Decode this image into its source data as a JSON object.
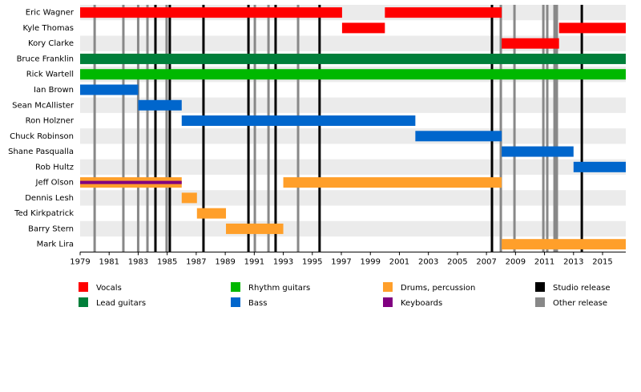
{
  "chart_data": {
    "type": "timeline",
    "categories": [
      "Eric Wagner",
      "Kyle Thomas",
      "Kory Clarke",
      "Bruce Franklin",
      "Rick Wartell",
      "Ian Brown",
      "Sean McAllister",
      "Ron Holzner",
      "Chuck Robinson",
      "Shane Pasqualla",
      "Rob Hultz",
      "Jeff Olson",
      "Dennis Lesh",
      "Ted Kirkpatrick",
      "Barry Stern",
      "Mark Lira"
    ],
    "roles": [
      {
        "name": "Vocals",
        "color": "#ff0000"
      },
      {
        "name": "Lead guitars",
        "color": "#007f3a"
      },
      {
        "name": "Rhythm guitars",
        "color": "#00b800"
      },
      {
        "name": "Bass",
        "color": "#0066cc"
      },
      {
        "name": "Drums, percussion",
        "color": "#ff9f2a"
      },
      {
        "name": "Keyboards",
        "color": "#800080"
      }
    ],
    "bars": [
      {
        "member": 0,
        "role": 0,
        "start": 1979,
        "end": 1997.05
      },
      {
        "member": 0,
        "role": 0,
        "start": 2000.0,
        "end": 2008.05
      },
      {
        "member": 1,
        "role": 0,
        "start": 1997.05,
        "end": 2000.0
      },
      {
        "member": 1,
        "role": 0,
        "start": 2012.0,
        "end": 2016.6
      },
      {
        "member": 2,
        "role": 0,
        "start": 2008.05,
        "end": 2012.0
      },
      {
        "member": 3,
        "role": 1,
        "start": 1979,
        "end": 2016.6
      },
      {
        "member": 4,
        "role": 2,
        "start": 1979,
        "end": 2016.6
      },
      {
        "member": 5,
        "role": 3,
        "start": 1979,
        "end": 1983.0
      },
      {
        "member": 6,
        "role": 3,
        "start": 1983.0,
        "end": 1986.0
      },
      {
        "member": 7,
        "role": 3,
        "start": 1986.0,
        "end": 2002.1
      },
      {
        "member": 8,
        "role": 3,
        "start": 2002.1,
        "end": 2008.05
      },
      {
        "member": 9,
        "role": 3,
        "start": 2008.05,
        "end": 2013.0
      },
      {
        "member": 10,
        "role": 3,
        "start": 2013.0,
        "end": 2016.6
      },
      {
        "member": 11,
        "role": 4,
        "start": 1979,
        "end": 1986.0
      },
      {
        "member": 11,
        "role": 5,
        "start": 1979,
        "end": 1986.0
      },
      {
        "member": 11,
        "role": 4,
        "start": 1993.0,
        "end": 2008.05
      },
      {
        "member": 12,
        "role": 4,
        "start": 1986.0,
        "end": 1987.05
      },
      {
        "member": 13,
        "role": 4,
        "start": 1987.05,
        "end": 1989.05
      },
      {
        "member": 14,
        "role": 4,
        "start": 1989.05,
        "end": 1993.0
      },
      {
        "member": 15,
        "role": 4,
        "start": 2008.05,
        "end": 2016.6
      }
    ],
    "releases": [
      {
        "name": "Studio release",
        "color": "#000000",
        "values": [
          1984.19,
          1985.18,
          1987.5,
          1990.6,
          1992.47,
          1995.5,
          2007.38,
          2013.57
        ]
      },
      {
        "name": "Other release",
        "color": "#888888",
        "values": [
          1980.0,
          1981.98,
          1983.0,
          1983.64,
          1984.96,
          1991.04,
          1991.98,
          1994.02,
          2007.99,
          2008.93,
          2010.92,
          2011.19,
          2011.69,
          2011.85
        ]
      }
    ],
    "xlim": [
      1979,
      2016.6
    ],
    "xticks": [
      1979,
      1981,
      1983,
      1985,
      1987,
      1989,
      1991,
      1993,
      1995,
      1997,
      1999,
      2001,
      2003,
      2005,
      2007,
      2009,
      2011,
      2013,
      2015
    ]
  }
}
